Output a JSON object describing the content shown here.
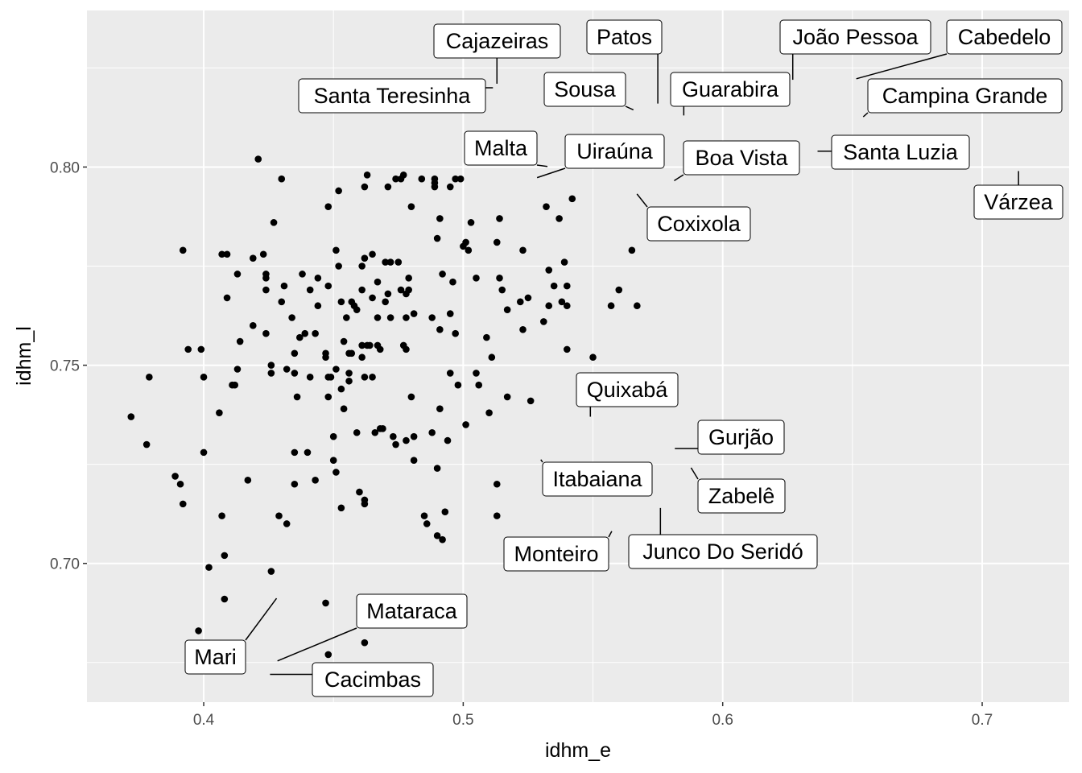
{
  "chart_data": {
    "type": "scatter",
    "title": "",
    "xlabel": "idhm_e",
    "ylabel": "idhm_l",
    "xlim": [
      0.355,
      0.7335
    ],
    "ylim": [
      0.665,
      0.8395
    ],
    "x_ticks": [
      0.4,
      0.5,
      0.6,
      0.7
    ],
    "y_ticks": [
      0.7,
      0.75,
      0.8
    ],
    "x_tick_labels": [
      "0.4",
      "0.5",
      "0.6",
      "0.7"
    ],
    "y_tick_labels": [
      "0.70",
      "0.75",
      "0.80"
    ],
    "grid": true,
    "legend": "none",
    "colors": {
      "panel": "#ebebeb",
      "grid": "#ffffff",
      "point": "#000000"
    },
    "points": [
      [
        0.372,
        0.737
      ],
      [
        0.378,
        0.73
      ],
      [
        0.379,
        0.747
      ],
      [
        0.389,
        0.722
      ],
      [
        0.391,
        0.72
      ],
      [
        0.392,
        0.715
      ],
      [
        0.392,
        0.779
      ],
      [
        0.394,
        0.754
      ],
      [
        0.398,
        0.683
      ],
      [
        0.399,
        0.754
      ],
      [
        0.4,
        0.747
      ],
      [
        0.4,
        0.728
      ],
      [
        0.402,
        0.699
      ],
      [
        0.406,
        0.738
      ],
      [
        0.407,
        0.712
      ],
      [
        0.407,
        0.778
      ],
      [
        0.408,
        0.702
      ],
      [
        0.408,
        0.691
      ],
      [
        0.409,
        0.778
      ],
      [
        0.409,
        0.767
      ],
      [
        0.411,
        0.745
      ],
      [
        0.412,
        0.745
      ],
      [
        0.413,
        0.749
      ],
      [
        0.413,
        0.773
      ],
      [
        0.414,
        0.756
      ],
      [
        0.417,
        0.721
      ],
      [
        0.419,
        0.76
      ],
      [
        0.419,
        0.777
      ],
      [
        0.421,
        0.802
      ],
      [
        0.423,
        0.778
      ],
      [
        0.424,
        0.773
      ],
      [
        0.424,
        0.772
      ],
      [
        0.424,
        0.769
      ],
      [
        0.424,
        0.758
      ],
      [
        0.426,
        0.698
      ],
      [
        0.426,
        0.75
      ],
      [
        0.426,
        0.748
      ],
      [
        0.427,
        0.786
      ],
      [
        0.429,
        0.712
      ],
      [
        0.43,
        0.797
      ],
      [
        0.43,
        0.766
      ],
      [
        0.431,
        0.77
      ],
      [
        0.432,
        0.749
      ],
      [
        0.432,
        0.71
      ],
      [
        0.434,
        0.762
      ],
      [
        0.435,
        0.753
      ],
      [
        0.435,
        0.748
      ],
      [
        0.435,
        0.728
      ],
      [
        0.435,
        0.72
      ],
      [
        0.436,
        0.742
      ],
      [
        0.437,
        0.757
      ],
      [
        0.438,
        0.773
      ],
      [
        0.439,
        0.758
      ],
      [
        0.44,
        0.728
      ],
      [
        0.441,
        0.769
      ],
      [
        0.441,
        0.747
      ],
      [
        0.443,
        0.758
      ],
      [
        0.443,
        0.721
      ],
      [
        0.444,
        0.765
      ],
      [
        0.444,
        0.772
      ],
      [
        0.447,
        0.753
      ],
      [
        0.447,
        0.752
      ],
      [
        0.447,
        0.69
      ],
      [
        0.448,
        0.742
      ],
      [
        0.448,
        0.747
      ],
      [
        0.448,
        0.77
      ],
      [
        0.448,
        0.79
      ],
      [
        0.448,
        0.677
      ],
      [
        0.449,
        0.747
      ],
      [
        0.45,
        0.732
      ],
      [
        0.45,
        0.726
      ],
      [
        0.451,
        0.749
      ],
      [
        0.451,
        0.723
      ],
      [
        0.451,
        0.779
      ],
      [
        0.452,
        0.794
      ],
      [
        0.452,
        0.775
      ],
      [
        0.453,
        0.766
      ],
      [
        0.453,
        0.744
      ],
      [
        0.453,
        0.714
      ],
      [
        0.454,
        0.756
      ],
      [
        0.454,
        0.739
      ],
      [
        0.455,
        0.762
      ],
      [
        0.456,
        0.753
      ],
      [
        0.456,
        0.748
      ],
      [
        0.456,
        0.746
      ],
      [
        0.457,
        0.753
      ],
      [
        0.457,
        0.766
      ],
      [
        0.458,
        0.765
      ],
      [
        0.459,
        0.733
      ],
      [
        0.459,
        0.764
      ],
      [
        0.46,
        0.718
      ],
      [
        0.461,
        0.769
      ],
      [
        0.461,
        0.752
      ],
      [
        0.461,
        0.755
      ],
      [
        0.461,
        0.775
      ],
      [
        0.462,
        0.716
      ],
      [
        0.462,
        0.715
      ],
      [
        0.462,
        0.68
      ],
      [
        0.462,
        0.747
      ],
      [
        0.462,
        0.777
      ],
      [
        0.462,
        0.795
      ],
      [
        0.463,
        0.798
      ],
      [
        0.463,
        0.755
      ],
      [
        0.464,
        0.755
      ],
      [
        0.465,
        0.778
      ],
      [
        0.465,
        0.767
      ],
      [
        0.465,
        0.747
      ],
      [
        0.466,
        0.733
      ],
      [
        0.467,
        0.771
      ],
      [
        0.467,
        0.762
      ],
      [
        0.467,
        0.755
      ],
      [
        0.468,
        0.754
      ],
      [
        0.468,
        0.734
      ],
      [
        0.469,
        0.734
      ],
      [
        0.47,
        0.776
      ],
      [
        0.47,
        0.766
      ],
      [
        0.471,
        0.768
      ],
      [
        0.471,
        0.795
      ],
      [
        0.472,
        0.776
      ],
      [
        0.472,
        0.762
      ],
      [
        0.473,
        0.732
      ],
      [
        0.474,
        0.73
      ],
      [
        0.474,
        0.797
      ],
      [
        0.475,
        0.776
      ],
      [
        0.476,
        0.769
      ],
      [
        0.476,
        0.797
      ],
      [
        0.477,
        0.798
      ],
      [
        0.477,
        0.755
      ],
      [
        0.478,
        0.754
      ],
      [
        0.478,
        0.731
      ],
      [
        0.478,
        0.768
      ],
      [
        0.478,
        0.762
      ],
      [
        0.479,
        0.772
      ],
      [
        0.479,
        0.769
      ],
      [
        0.48,
        0.79
      ],
      [
        0.48,
        0.742
      ],
      [
        0.481,
        0.763
      ],
      [
        0.481,
        0.732
      ],
      [
        0.481,
        0.726
      ],
      [
        0.484,
        0.797
      ],
      [
        0.485,
        0.712
      ],
      [
        0.486,
        0.71
      ],
      [
        0.488,
        0.733
      ],
      [
        0.488,
        0.762
      ],
      [
        0.489,
        0.795
      ],
      [
        0.489,
        0.796
      ],
      [
        0.489,
        0.797
      ],
      [
        0.49,
        0.782
      ],
      [
        0.49,
        0.724
      ],
      [
        0.49,
        0.707
      ],
      [
        0.491,
        0.787
      ],
      [
        0.491,
        0.739
      ],
      [
        0.491,
        0.759
      ],
      [
        0.492,
        0.706
      ],
      [
        0.492,
        0.773
      ],
      [
        0.493,
        0.713
      ],
      [
        0.494,
        0.731
      ],
      [
        0.495,
        0.795
      ],
      [
        0.495,
        0.763
      ],
      [
        0.495,
        0.748
      ],
      [
        0.496,
        0.771
      ],
      [
        0.497,
        0.797
      ],
      [
        0.497,
        0.758
      ],
      [
        0.498,
        0.745
      ],
      [
        0.499,
        0.797
      ],
      [
        0.5,
        0.78
      ],
      [
        0.501,
        0.781
      ],
      [
        0.501,
        0.735
      ],
      [
        0.502,
        0.779
      ],
      [
        0.503,
        0.786
      ],
      [
        0.505,
        0.748
      ],
      [
        0.505,
        0.772
      ],
      [
        0.506,
        0.745
      ],
      [
        0.509,
        0.757
      ],
      [
        0.51,
        0.738
      ],
      [
        0.511,
        0.752
      ],
      [
        0.513,
        0.781
      ],
      [
        0.513,
        0.72
      ],
      [
        0.513,
        0.712
      ],
      [
        0.514,
        0.787
      ],
      [
        0.514,
        0.772
      ],
      [
        0.515,
        0.769
      ],
      [
        0.517,
        0.742
      ],
      [
        0.517,
        0.764
      ],
      [
        0.522,
        0.766
      ],
      [
        0.523,
        0.779
      ],
      [
        0.523,
        0.759
      ],
      [
        0.525,
        0.767
      ],
      [
        0.526,
        0.741
      ],
      [
        0.531,
        0.761
      ],
      [
        0.532,
        0.79
      ],
      [
        0.533,
        0.765
      ],
      [
        0.533,
        0.774
      ],
      [
        0.535,
        0.77
      ],
      [
        0.537,
        0.787
      ],
      [
        0.538,
        0.766
      ],
      [
        0.539,
        0.776
      ],
      [
        0.54,
        0.754
      ],
      [
        0.54,
        0.77
      ],
      [
        0.54,
        0.765
      ],
      [
        0.542,
        0.792
      ],
      [
        0.55,
        0.752
      ],
      [
        0.557,
        0.765
      ],
      [
        0.56,
        0.769
      ],
      [
        0.565,
        0.779
      ],
      [
        0.567,
        0.765
      ]
    ],
    "labels": [
      {
        "text": "Cajazeiras",
        "x": 0.513,
        "y": 0.82
      },
      {
        "text": "Patos",
        "x": 0.575,
        "y": 0.815
      },
      {
        "text": "João Pessoa",
        "x": 0.627,
        "y": 0.821
      },
      {
        "text": "Cabedelo",
        "x": 0.65,
        "y": 0.822
      },
      {
        "text": "Santa Teresinha",
        "x": 0.513,
        "y": 0.82
      },
      {
        "text": "Sousa",
        "x": 0.567,
        "y": 0.814
      },
      {
        "text": "Guarabira",
        "x": 0.585,
        "y": 0.812
      },
      {
        "text": "Campina Grande",
        "x": 0.653,
        "y": 0.812
      },
      {
        "text": "Malta",
        "x": 0.534,
        "y": 0.8
      },
      {
        "text": "Uiraúna",
        "x": 0.527,
        "y": 0.797
      },
      {
        "text": "Boa Vista",
        "x": 0.58,
        "y": 0.796
      },
      {
        "text": "Santa Luzia",
        "x": 0.635,
        "y": 0.804
      },
      {
        "text": "Várzea",
        "x": 0.714,
        "y": 0.8
      },
      {
        "text": "Coxixola",
        "x": 0.566,
        "y": 0.794
      },
      {
        "text": "Quixabá",
        "x": 0.549,
        "y": 0.736
      },
      {
        "text": "Gurjão",
        "x": 0.58,
        "y": 0.729
      },
      {
        "text": "Itabaiana",
        "x": 0.529,
        "y": 0.727
      },
      {
        "text": "Zabelê",
        "x": 0.587,
        "y": 0.725
      },
      {
        "text": "Monteiro",
        "x": 0.558,
        "y": 0.709
      },
      {
        "text": "Junco Do Seridó",
        "x": 0.576,
        "y": 0.715
      },
      {
        "text": "Mataraca",
        "x": 0.427,
        "y": 0.675
      },
      {
        "text": "Mari",
        "x": 0.429,
        "y": 0.692
      },
      {
        "text": "Cacimbas",
        "x": 0.424,
        "y": 0.672
      }
    ]
  }
}
